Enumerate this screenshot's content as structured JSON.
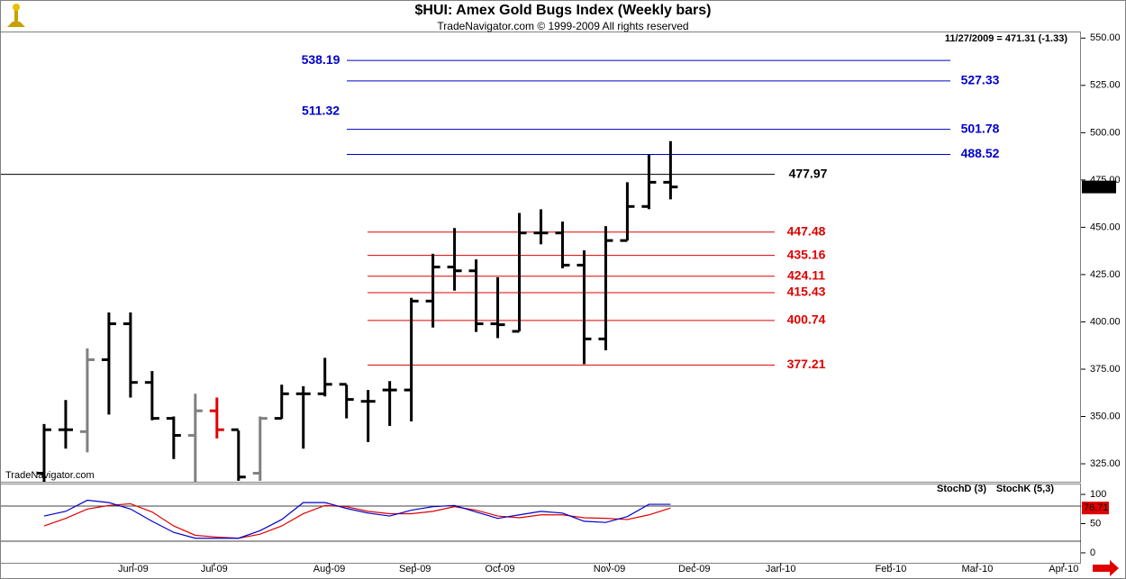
{
  "chart_data": {
    "type": "ohlc",
    "title": "$HUI:  Amex Gold Bugs Index  (Weekly bars)",
    "subtitle": "TradeNavigator.com © 1999-2009 All rights reserved",
    "annotation": "11/27/2009 = 471.31 (-1.33)",
    "watermark": "TradeNavigator.com",
    "last_price": 471.31,
    "open": [
      320,
      343,
      342,
      380,
      399,
      368,
      349,
      340,
      353,
      343,
      320,
      349,
      362,
      362,
      367,
      358,
      364,
      364,
      411,
      429,
      427,
      399,
      395,
      447,
      447,
      430,
      391,
      443,
      461,
      473.8
    ],
    "high": [
      346,
      358.7,
      386,
      405,
      405,
      374,
      350,
      362,
      360,
      342.6,
      350,
      366.8,
      366,
      381,
      366.8,
      364,
      368.7,
      412.7,
      436,
      449.6,
      433,
      423.6,
      457.6,
      459.5,
      453,
      437.8,
      450.6,
      473.8,
      488.4,
      495.5
    ],
    "low": [
      315,
      333,
      331,
      351,
      360,
      348,
      327.5,
      315,
      338.4,
      316,
      316,
      348.8,
      333,
      360.6,
      349,
      336.5,
      345,
      347.4,
      397,
      416.5,
      394.7,
      391.4,
      395,
      441,
      428.3,
      377.7,
      385,
      443,
      459.6,
      464.8
    ],
    "close": [
      343,
      343,
      380,
      399,
      368,
      349,
      340,
      353,
      343,
      318,
      349,
      362,
      362,
      367,
      359,
      358,
      364,
      411,
      429,
      427,
      399,
      398.5,
      447,
      447,
      430,
      391,
      443,
      461,
      473.8,
      471.31
    ],
    "colors": [
      "#000",
      "#000",
      "#808080",
      "#000",
      "#000",
      "#000",
      "#000",
      "#808080",
      "#e00000",
      "#000",
      "#808080",
      "#000",
      "#000",
      "#000",
      "#000",
      "#000",
      "#000",
      "#000",
      "#000",
      "#000",
      "#000",
      "#000",
      "#000",
      "#000",
      "#000",
      "#000",
      "#000",
      "#000",
      "#000",
      "#000"
    ],
    "levels": [
      {
        "value": 538.19,
        "color": "#0000cc",
        "side": "left",
        "line": true
      },
      {
        "value": 527.33,
        "color": "#0000cc",
        "side": "right",
        "line": true
      },
      {
        "value": 511.32,
        "color": "#0000cc",
        "side": "left",
        "line": false
      },
      {
        "value": 501.78,
        "color": "#0000cc",
        "side": "right",
        "line": true
      },
      {
        "value": 488.52,
        "color": "#0000cc",
        "side": "right",
        "line": true
      },
      {
        "value": 477.97,
        "color": "#000000",
        "side": "right",
        "line": true
      },
      {
        "value": 447.48,
        "color": "#e00000",
        "side": "right",
        "line": true
      },
      {
        "value": 435.16,
        "color": "#e00000",
        "side": "right",
        "line": true
      },
      {
        "value": 424.11,
        "color": "#e00000",
        "side": "right",
        "line": true
      },
      {
        "value": 415.43,
        "color": "#e00000",
        "side": "right",
        "line": true
      },
      {
        "value": 400.74,
        "color": "#e00000",
        "side": "right",
        "line": true
      },
      {
        "value": 377.21,
        "color": "#e00000",
        "side": "right",
        "line": true
      }
    ],
    "xlim": [
      -2,
      48
    ],
    "xticks": [
      {
        "value": 4.125,
        "label": "Jun-09"
      },
      {
        "value": 7.875,
        "label": "Jul-09"
      },
      {
        "value": 13.2,
        "label": "Aug-09"
      },
      {
        "value": 17.17,
        "label": "Sep-09"
      },
      {
        "value": 21.1,
        "label": "Oct-09"
      },
      {
        "value": 26.17,
        "label": "Nov-09"
      },
      {
        "value": 30.1,
        "label": "Dec-09"
      },
      {
        "value": 34.1,
        "label": "Jan-10"
      },
      {
        "value": 39.2,
        "label": "Feb-10"
      },
      {
        "value": 43.2,
        "label": "Mar-10"
      },
      {
        "value": 47.2,
        "label": "Apr-10"
      }
    ],
    "ylim": [
      315.5,
      553
    ],
    "yticks": [
      {
        "value": 325,
        "label": "325.00"
      },
      {
        "value": 350,
        "label": "350.00"
      },
      {
        "value": 375,
        "label": "375.00"
      },
      {
        "value": 400,
        "label": "400.00"
      },
      {
        "value": 425,
        "label": "425.00"
      },
      {
        "value": 450,
        "label": "450.00"
      },
      {
        "value": 475,
        "label": "475.00"
      },
      {
        "value": 500,
        "label": "500.00"
      },
      {
        "value": 525,
        "label": "525.00"
      },
      {
        "value": 550,
        "label": "550.00"
      }
    ],
    "stoch": {
      "ylim": [
        -17,
        117
      ],
      "yticks": [
        0,
        50,
        100
      ],
      "bands": [
        20,
        80
      ],
      "series": [
        {
          "name": "StochD (3)",
          "color": "#e00000",
          "values": [
            46,
            59,
            75,
            81,
            84,
            70,
            46,
            30,
            27,
            25,
            32,
            46,
            67,
            81,
            79,
            71,
            67,
            67,
            71,
            79,
            73,
            63,
            60,
            65,
            65,
            60,
            59,
            57,
            65,
            76.71
          ]
        },
        {
          "name": "StochK (5,3)",
          "color": "#0000cc",
          "values": [
            63,
            71,
            90,
            86,
            75,
            54,
            35,
            25,
            25,
            25,
            38,
            57,
            86,
            86,
            76,
            68,
            63,
            73,
            79,
            81,
            70,
            59,
            65,
            71,
            68,
            54,
            52,
            62,
            83,
            83
          ]
        }
      ]
    }
  }
}
